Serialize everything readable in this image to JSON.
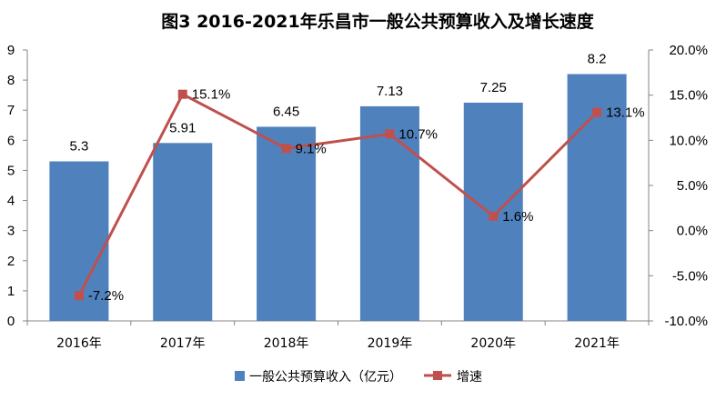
{
  "chart_data": {
    "type": "bar",
    "title": "图3  2016-2021年乐昌市一般公共预算收入及增长速度",
    "categories": [
      "2016年",
      "2017年",
      "2018年",
      "2019年",
      "2020年",
      "2021年"
    ],
    "series": [
      {
        "name": "一般公共预算收入（亿元）",
        "type": "bar",
        "axis": "left",
        "color": "#4F81BD",
        "values": [
          5.3,
          5.91,
          6.45,
          7.13,
          7.25,
          8.2
        ],
        "labels": [
          "5.3",
          "5.91",
          "6.45",
          "7.13",
          "7.25",
          "8.2"
        ]
      },
      {
        "name": "增速",
        "type": "line",
        "axis": "right",
        "color": "#C0504D",
        "values": [
          -7.2,
          15.1,
          9.1,
          10.7,
          1.6,
          13.1
        ],
        "labels": [
          "-7.2%",
          "15.1%",
          "9.1%",
          "10.7%",
          "1.6%",
          "13.1%"
        ]
      }
    ],
    "y_left": {
      "range": [
        0,
        9
      ],
      "ticks": [
        0,
        1,
        2,
        3,
        4,
        5,
        6,
        7,
        8,
        9
      ],
      "tick_labels": [
        "0",
        "1",
        "2",
        "3",
        "4",
        "5",
        "6",
        "7",
        "8",
        "9"
      ]
    },
    "y_right": {
      "range": [
        -10,
        20
      ],
      "ticks": [
        -10,
        -5,
        0,
        5,
        10,
        15,
        20
      ],
      "tick_labels": [
        "-10.0%",
        "-5.0%",
        "0.0%",
        "5.0%",
        "10.0%",
        "15.0%",
        "20.0%"
      ]
    },
    "grid": false,
    "legend": "bottom"
  }
}
